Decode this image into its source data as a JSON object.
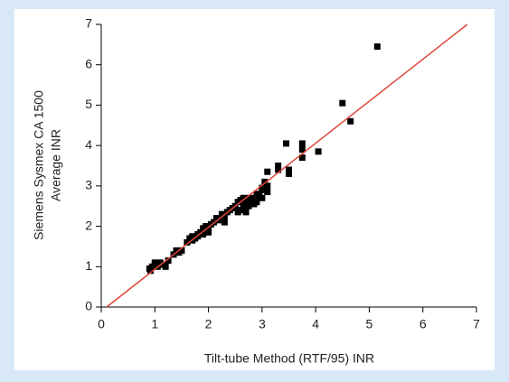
{
  "chart_data": {
    "type": "scatter",
    "xlabel": "Tilt-tube Method (RTF/95) INR",
    "ylabel": [
      "Siemens Sysmex CA 1500",
      "Average INR"
    ],
    "xlim": [
      0,
      7
    ],
    "ylim": [
      0,
      7
    ],
    "xticks": [
      0,
      1,
      2,
      3,
      4,
      5,
      6,
      7
    ],
    "yticks": [
      0,
      1,
      2,
      3,
      4,
      5,
      6,
      7
    ],
    "series": [
      {
        "color": "#000000",
        "x": [
          0.9,
          0.95,
          1.0,
          1.05,
          1.1,
          1.15,
          1.2,
          0.92,
          1.0,
          1.08,
          1.25,
          1.35,
          1.4,
          1.45,
          1.6,
          1.65,
          1.7,
          1.75,
          1.8,
          1.85,
          1.9,
          1.95,
          2.0,
          1.7,
          1.8,
          1.9,
          2.05,
          2.1,
          2.15,
          2.2,
          2.25,
          2.3,
          2.35,
          2.4,
          2.45,
          2.5,
          2.55,
          2.6,
          2.65,
          2.7,
          2.75,
          2.55,
          2.6,
          2.65,
          2.7,
          2.8,
          2.85,
          2.9,
          2.95,
          3.0,
          3.05,
          2.9,
          3.0,
          3.1,
          2.75,
          2.85,
          3.0,
          3.05,
          3.1,
          3.1,
          3.3,
          3.3,
          3.5,
          3.5,
          3.45,
          3.75,
          3.75,
          3.75,
          4.05,
          4.5,
          4.65,
          5.15,
          2.0,
          2.3,
          1.5
        ],
        "y": [
          0.95,
          1.0,
          1.05,
          1.0,
          1.1,
          1.05,
          1.0,
          0.9,
          1.1,
          1.05,
          1.15,
          1.3,
          1.4,
          1.35,
          1.6,
          1.7,
          1.75,
          1.7,
          1.8,
          1.85,
          1.95,
          2.0,
          2.0,
          1.65,
          1.75,
          1.8,
          2.05,
          2.1,
          2.2,
          2.15,
          2.3,
          2.25,
          2.35,
          2.4,
          2.45,
          2.5,
          2.6,
          2.65,
          2.7,
          2.65,
          2.7,
          2.35,
          2.4,
          2.5,
          2.35,
          2.6,
          2.7,
          2.8,
          2.75,
          2.9,
          3.0,
          2.6,
          2.7,
          2.85,
          2.5,
          2.55,
          2.95,
          3.1,
          3.0,
          3.35,
          3.4,
          3.5,
          3.4,
          3.3,
          4.05,
          4.05,
          3.9,
          3.7,
          3.85,
          5.05,
          4.6,
          6.45,
          1.85,
          2.1,
          1.4
        ]
      },
      {
        "type": "line",
        "color": "#e0473a",
        "x": [
          0.1,
          6.83
        ],
        "y": [
          0,
          7
        ]
      }
    ]
  }
}
